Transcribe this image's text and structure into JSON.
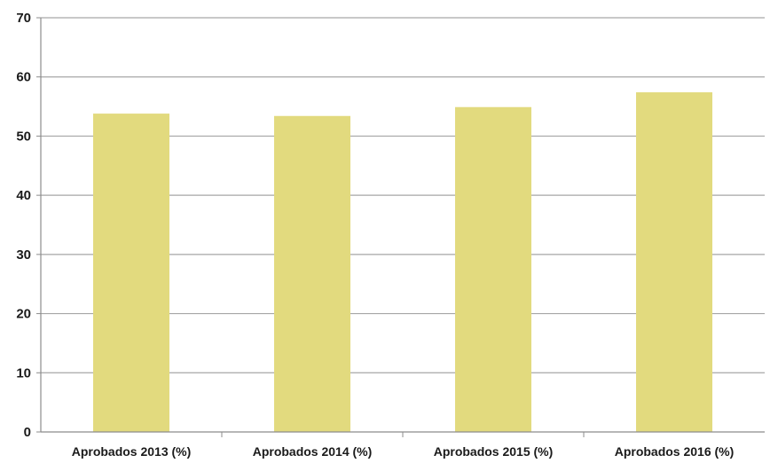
{
  "chart_data": {
    "type": "bar",
    "categories": [
      "Aprobados 2013 (%)",
      "Aprobados 2014 (%)",
      "Aprobados 2015 (%)",
      "Aprobados 2016 (%)"
    ],
    "values": [
      53.8,
      53.4,
      54.9,
      57.4
    ],
    "yticks": [
      "0",
      "10",
      "20",
      "30",
      "40",
      "50",
      "60",
      "70"
    ],
    "ylim": [
      0,
      70
    ],
    "grid": true,
    "legend": "none",
    "colors": {
      "bar": "#e2da7e",
      "grid": "#a6a6a6",
      "axis": "#8c8c8c"
    }
  }
}
